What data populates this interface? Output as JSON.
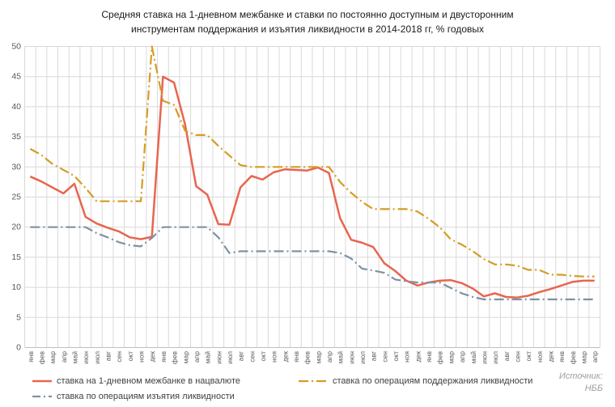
{
  "title": {
    "line1": "Средняя ставка на 1-дневном межбанке и ставки по постоянно доступным и двусторонним",
    "line2": "инструментам поддержания и изъятия ликвидности в 2014-2018 гг, % годовых"
  },
  "source": {
    "line1": "Источник:",
    "line2": "НББ"
  },
  "colors": {
    "grid": "#d9d9d9",
    "axis": "#bfbfbf",
    "tick_label": "#595959"
  },
  "chart_data": {
    "type": "line",
    "title": "Средняя ставка на 1-дневном межбанке и ставки по постоянно доступным и двусторонним инструментам поддержания и изъятия ликвидности в 2014-2018 гг, % годовых",
    "ylabel": "% годовых",
    "ylim": [
      0,
      50
    ],
    "yticks": [
      0,
      5,
      10,
      15,
      20,
      25,
      30,
      35,
      40,
      45,
      50
    ],
    "grid": "both",
    "legend_position": "bottom",
    "x_categories": [
      "янв",
      "фев",
      "мар",
      "апр",
      "май",
      "июн",
      "июл",
      "авг",
      "сен",
      "окт",
      "ноя",
      "дек",
      "янв",
      "фев",
      "мар",
      "апр",
      "май",
      "июн",
      "июл",
      "авг",
      "сен",
      "окт",
      "ноя",
      "дек",
      "янв",
      "фев",
      "мар",
      "апр",
      "май",
      "июн",
      "июл",
      "авг",
      "сен",
      "окт",
      "ноя",
      "дек",
      "янв",
      "фев",
      "мар",
      "апр",
      "май",
      "июн",
      "июл",
      "авг",
      "сен",
      "окт",
      "ноя",
      "дек",
      "янв",
      "фев",
      "мар",
      "апр"
    ],
    "x_range_note": "январь 2014 — апрель 2018, помесячно",
    "series": [
      {
        "name": "ставка на 1-дневном межбанке в нацвалюте",
        "color": "#e8654f",
        "dash": "solid",
        "values": [
          28.4,
          27.6,
          26.6,
          25.6,
          27.2,
          21.7,
          20.6,
          19.9,
          19.3,
          18.3,
          18.0,
          18.4,
          45.0,
          44.0,
          37.0,
          26.8,
          25.4,
          20.5,
          20.4,
          26.6,
          28.5,
          27.9,
          29.1,
          29.6,
          29.5,
          29.4,
          29.9,
          29.0,
          21.5,
          17.9,
          17.4,
          16.7,
          14.0,
          12.7,
          11.1,
          10.3,
          10.8,
          11.1,
          11.2,
          10.7,
          9.8,
          8.5,
          9.0,
          8.4,
          8.3,
          8.6,
          9.2,
          9.7,
          10.3,
          10.9,
          11.1,
          11.1
        ]
      },
      {
        "name": "ставка по операциям поддержания ликвидности",
        "color": "#d49d23",
        "dash": "dashdot",
        "values": [
          33.0,
          32.0,
          30.5,
          29.5,
          28.5,
          26.5,
          24.3,
          24.3,
          24.3,
          24.3,
          24.3,
          50.0,
          41.0,
          40.3,
          36.0,
          35.3,
          35.3,
          33.5,
          31.9,
          30.3,
          30.0,
          30.0,
          30.0,
          30.0,
          30.0,
          30.0,
          30.0,
          30.0,
          27.5,
          25.7,
          24.2,
          23.0,
          23.0,
          23.0,
          23.0,
          22.6,
          21.4,
          20.0,
          18.0,
          17.1,
          16.0,
          14.7,
          13.8,
          13.8,
          13.6,
          12.9,
          12.9,
          12.1,
          12.1,
          11.9,
          11.8,
          11.8
        ]
      },
      {
        "name": "ставка по операциям изъятия ликвидности",
        "color": "#7f91a3",
        "dash": "dashdot",
        "values": [
          20,
          20,
          20,
          20,
          20,
          20,
          19.0,
          18.3,
          17.5,
          17.0,
          16.8,
          18.2,
          20,
          20,
          20,
          20,
          20,
          18.3,
          15.7,
          16.0,
          16.0,
          16.0,
          16.0,
          16.0,
          16.0,
          16.0,
          16.0,
          16.0,
          15.7,
          14.8,
          13.1,
          12.8,
          12.4,
          11.3,
          11.0,
          10.8,
          10.8,
          10.8,
          9.9,
          9.0,
          8.4,
          8.0,
          8.0,
          8.0,
          8.0,
          8.0,
          8.0,
          8.0,
          8.0,
          8.0,
          8.0,
          8.0
        ]
      }
    ]
  }
}
